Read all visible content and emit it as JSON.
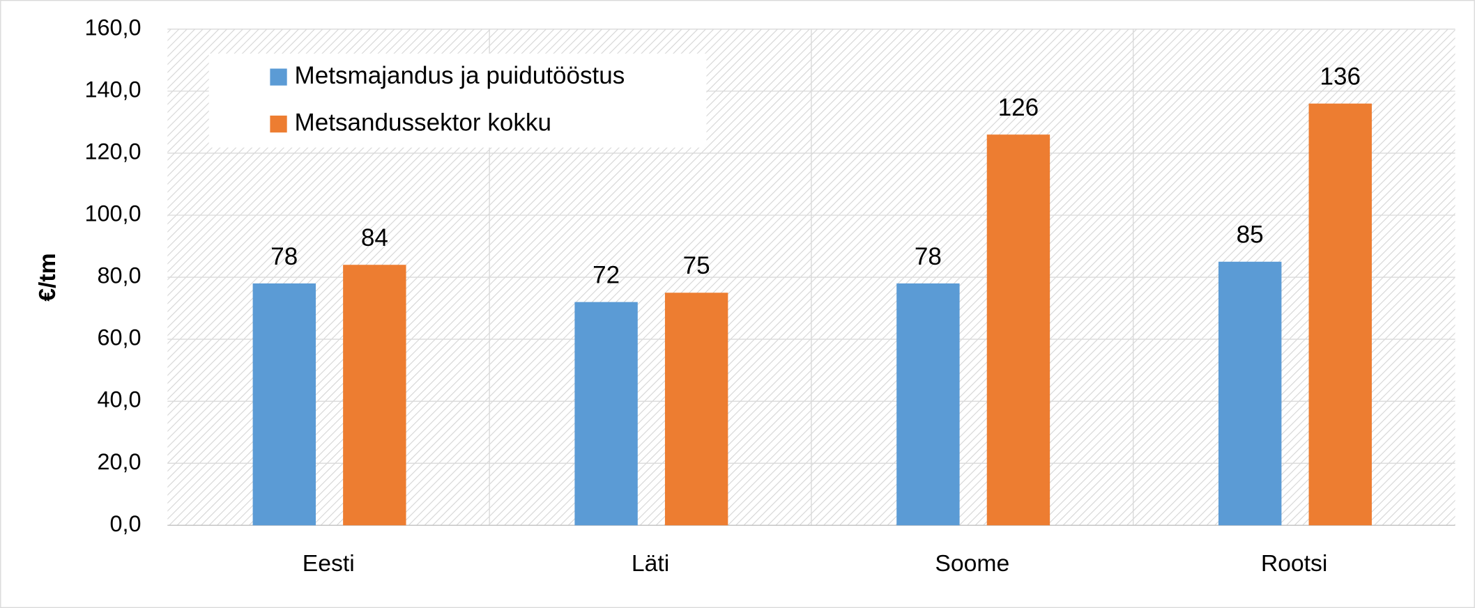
{
  "chart_data": {
    "type": "bar",
    "y_label": "€/tm",
    "categories": [
      "Eesti",
      "Läti",
      "Soome",
      "Rootsi"
    ],
    "series": [
      {
        "name": "Metsmajandus ja puidutööstus",
        "color": "#5b9bd5",
        "values": [
          78,
          72,
          78,
          85
        ]
      },
      {
        "name": "Metsandussektor kokku",
        "color": "#ed7d31",
        "values": [
          84,
          75,
          126,
          136
        ]
      }
    ],
    "ylim": [
      0,
      160
    ],
    "yticks": [
      {
        "value": 0,
        "label": "0,0"
      },
      {
        "value": 20,
        "label": "20,0"
      },
      {
        "value": 40,
        "label": "40,0"
      },
      {
        "value": 60,
        "label": "60,0"
      },
      {
        "value": 80,
        "label": "80,0"
      },
      {
        "value": 100,
        "label": "100,0"
      },
      {
        "value": 120,
        "label": "120,0"
      },
      {
        "value": 140,
        "label": "140,0"
      },
      {
        "value": 160,
        "label": "160,0"
      }
    ],
    "grid": true,
    "legend": "upper left"
  }
}
